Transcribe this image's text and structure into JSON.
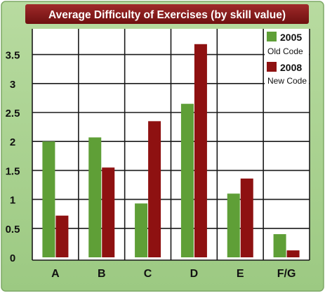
{
  "chart_data": {
    "type": "bar",
    "title": "Average Difficulty of Exercises (by skill value)",
    "xlabel": "",
    "ylabel": "",
    "categories": [
      "A",
      "B",
      "C",
      "D",
      "E",
      "F/G"
    ],
    "series": [
      {
        "name": "2005",
        "sublabel": "Old Code",
        "color": "#5f9f37",
        "values": [
          2.0,
          2.07,
          0.93,
          2.65,
          1.1,
          0.4
        ]
      },
      {
        "name": "2008",
        "sublabel": "New Code",
        "color": "#8e1111",
        "values": [
          0.72,
          1.55,
          2.35,
          3.68,
          1.36,
          0.12
        ]
      }
    ],
    "ylim": [
      0,
      4
    ],
    "yticks": [
      0,
      0.5,
      1,
      1.5,
      2,
      2.5,
      3,
      3.5
    ],
    "ytick_labels": [
      "0",
      "0.5",
      "1",
      "1.5",
      "2",
      "2.5",
      "3",
      "3.5"
    ],
    "grid": true,
    "legend_position": "top-right",
    "colors": {
      "background": "#a6cf8b",
      "title_band": "#891a1a",
      "title_text": "#ffffff",
      "grid": "#1a1a1a",
      "plot_bg": "#ffffff"
    }
  }
}
